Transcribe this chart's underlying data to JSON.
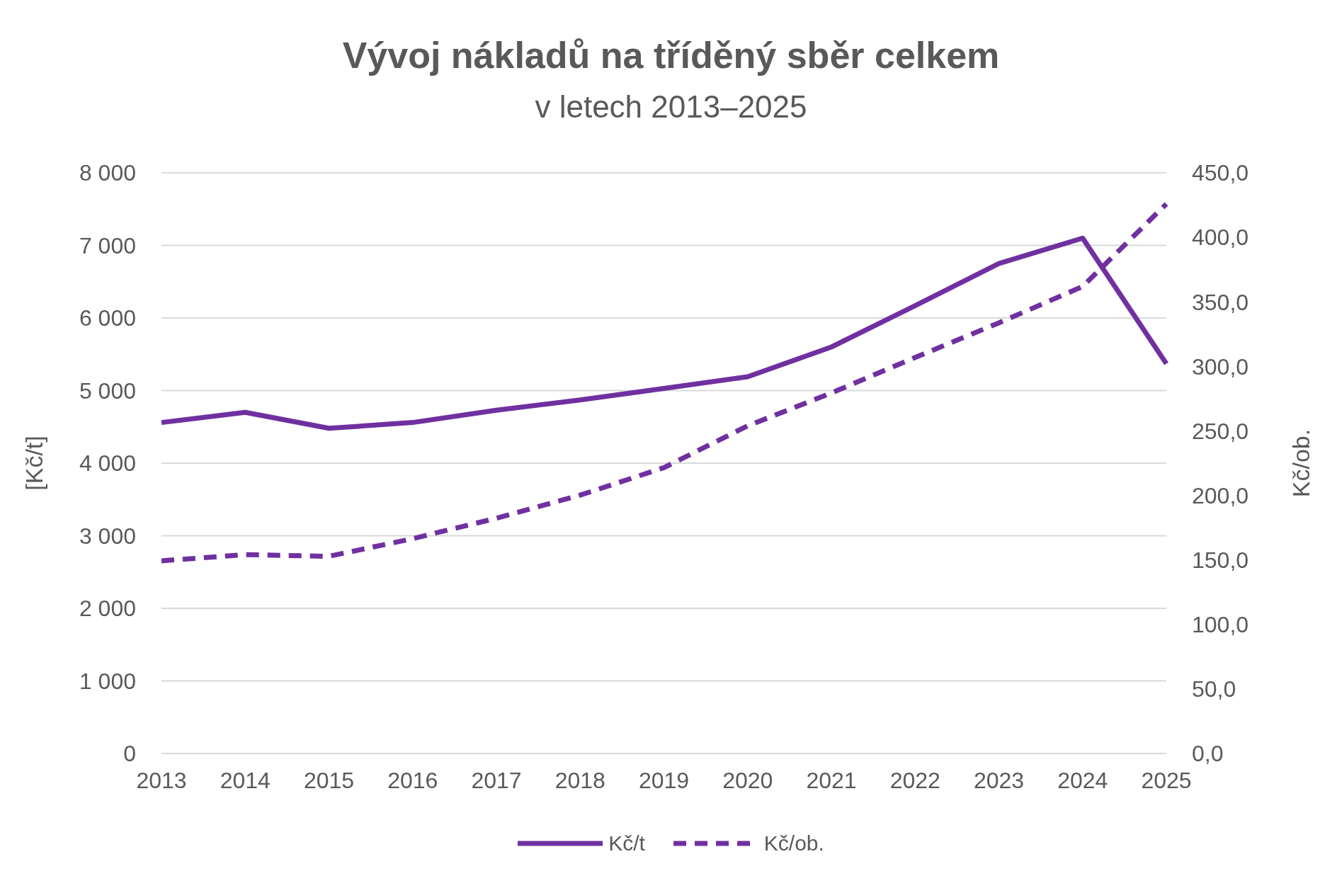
{
  "chart_data": {
    "type": "line",
    "title": "Vývoj nákladů na tříděný sběr celkem",
    "subtitle": "v letech 2013–2025",
    "ylabel": "[Kč/t]",
    "y2label": "Kč/ob.",
    "categories": [
      "2013",
      "2014",
      "2015",
      "2016",
      "2017",
      "2018",
      "2019",
      "2020",
      "2021",
      "2022",
      "2023",
      "2024",
      "2025"
    ],
    "series": [
      {
        "name": "Kč/t",
        "color": "#7030a0",
        "line_style": "solid",
        "values": [
          4560,
          4700,
          4480,
          4560,
          4730,
          4870,
          5030,
          5190,
          5600,
          6170,
          6750,
          7100,
          5370
        ]
      },
      {
        "name": "Kč/ob.",
        "color": "#7030a0",
        "line_style": "dashed",
        "axis": "y2",
        "values": [
          149.3,
          154.1,
          152.8,
          166.5,
          182.3,
          200.2,
          221.5,
          253.9,
          279.4,
          306.9,
          333.7,
          361.9,
          425.9
        ]
      }
    ],
    "ylim": [
      0,
      8000
    ],
    "yticks": [
      {
        "value": 0,
        "label": "0"
      },
      {
        "value": 1000,
        "label": "1 000"
      },
      {
        "value": 2000,
        "label": "2 000"
      },
      {
        "value": 3000,
        "label": "3 000"
      },
      {
        "value": 4000,
        "label": "4 000"
      },
      {
        "value": 5000,
        "label": "5 000"
      },
      {
        "value": 6000,
        "label": "6 000"
      },
      {
        "value": 7000,
        "label": "7 000"
      },
      {
        "value": 8000,
        "label": "8 000"
      }
    ],
    "y2lim": [
      0,
      450
    ],
    "y2ticks": [
      {
        "value": 0,
        "label": "0,0"
      },
      {
        "value": 50,
        "label": "50,0"
      },
      {
        "value": 100,
        "label": "100,0"
      },
      {
        "value": 150,
        "label": "150,0"
      },
      {
        "value": 200,
        "label": "200,0"
      },
      {
        "value": 250,
        "label": "250,0"
      },
      {
        "value": 300,
        "label": "300,0"
      },
      {
        "value": 350,
        "label": "350,0"
      },
      {
        "value": 400,
        "label": "400,0"
      },
      {
        "value": 450,
        "label": "450,0"
      }
    ],
    "grid": "y",
    "legend": "bottom",
    "marker": "none"
  }
}
